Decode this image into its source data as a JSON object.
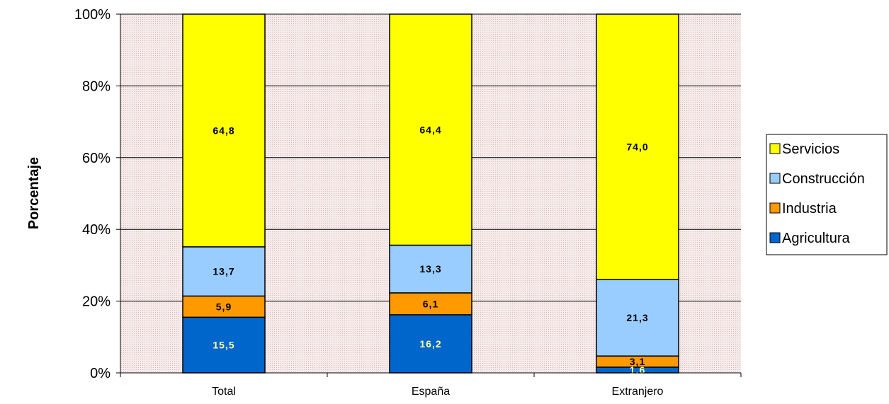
{
  "chart_data": {
    "type": "bar",
    "stacked": true,
    "percent_stacked": true,
    "categories": [
      "Total",
      "España",
      "Extranjero"
    ],
    "series": [
      {
        "name": "Agricultura",
        "values": [
          15.5,
          16.2,
          1.6
        ],
        "labels": [
          "15,5",
          "16,2",
          "1,6"
        ],
        "color": "#0066CC",
        "label_color": "#FFFF99"
      },
      {
        "name": "Industria",
        "values": [
          5.9,
          6.1,
          3.1
        ],
        "labels": [
          "5,9",
          "6,1",
          "3,1"
        ],
        "color": "#FF9900",
        "label_color": "#000000"
      },
      {
        "name": "Construcción",
        "values": [
          13.7,
          13.3,
          21.3
        ],
        "labels": [
          "13,7",
          "13,3",
          "21,3"
        ],
        "color": "#99CCFF",
        "label_color": "#000000"
      },
      {
        "name": "Servicios",
        "values": [
          64.8,
          64.4,
          74.0
        ],
        "labels": [
          "64,8",
          "64,4",
          "74,0"
        ],
        "color": "#FFFF00",
        "label_color": "#000000"
      }
    ],
    "title": "",
    "xlabel": "",
    "ylabel": "Porcentaje",
    "ylim": [
      0,
      100
    ],
    "yticks": [
      0,
      20,
      40,
      60,
      80,
      100
    ],
    "ytick_labels": [
      "0%",
      "20%",
      "40%",
      "60%",
      "80%",
      "100%"
    ],
    "grid": true,
    "legend_position": "right",
    "legend_order": [
      "Servicios",
      "Construcción",
      "Industria",
      "Agricultura"
    ],
    "plot_background": "#F4E4E4"
  }
}
